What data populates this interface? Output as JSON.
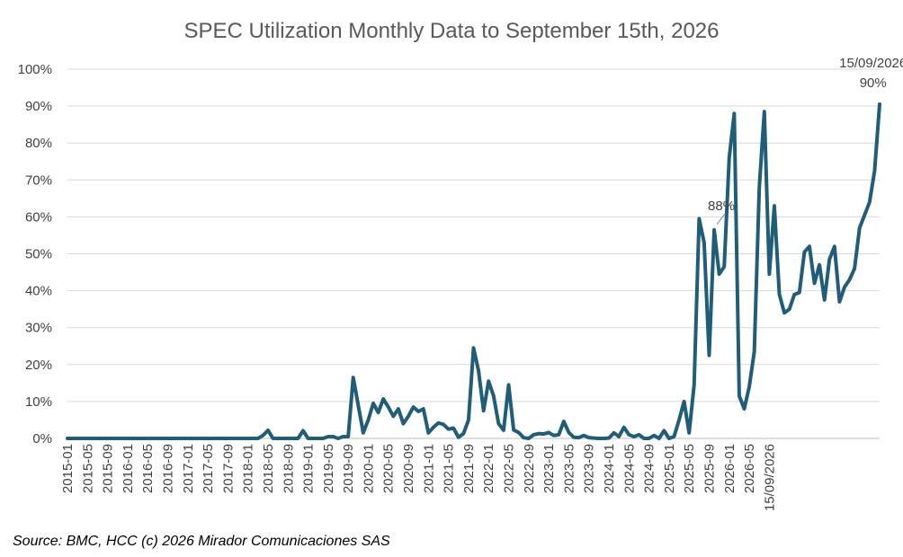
{
  "source_text": "Source: BMC, HCC (c) 2026 Mirador Comunicaciones SAS",
  "chart_data": {
    "type": "line",
    "title": "SPEC Utilization Monthly Data to September 15th, 2026",
    "xlabel": "",
    "ylabel": "",
    "ylim": [
      0,
      100
    ],
    "y_ticks": [
      "0%",
      "10%",
      "20%",
      "30%",
      "40%",
      "50%",
      "60%",
      "70%",
      "80%",
      "90%",
      "100%"
    ],
    "x_tick_labels": [
      "2015-01",
      "2015-05",
      "2015-09",
      "2016-01",
      "2016-05",
      "2016-09",
      "2017-01",
      "2017-05",
      "2017-09",
      "2018-01",
      "2018-05",
      "2018-09",
      "2019-01",
      "2019-05",
      "2019-09",
      "2020-01",
      "2020-05",
      "2020-09",
      "2021-01",
      "2021-05",
      "2021-09",
      "2022-01",
      "2022-05",
      "2022-09",
      "2023-01",
      "2023-05",
      "2023-09",
      "2024-01",
      "2024-05",
      "2024-09",
      "2025-01",
      "2025-05",
      "2025-09",
      "2026-01",
      "2026-05",
      "15/09/2026"
    ],
    "grid": true,
    "line_color": "#1f5d79",
    "series": [
      {
        "values": [
          0,
          0,
          0,
          0,
          0,
          0,
          0,
          0,
          0,
          0,
          0,
          0,
          0,
          0,
          0,
          0,
          0,
          0,
          0,
          0,
          0,
          0,
          0,
          0,
          0,
          0,
          0,
          0,
          0,
          0,
          0,
          0,
          0,
          0,
          0,
          0,
          0,
          0,
          0,
          0.8,
          2.2,
          0,
          0,
          0,
          0,
          0,
          0,
          2.1,
          0,
          0,
          0,
          0,
          0.5,
          0.5,
          0,
          0.5,
          0.5,
          16.5,
          9,
          1.5,
          5,
          9.5,
          7,
          10.7,
          8.5,
          6,
          8,
          4,
          6,
          8.5,
          7.3,
          8,
          1.5,
          3,
          4.2,
          3.8,
          2.5,
          2.8,
          0.3,
          1.3,
          5,
          24.5,
          18.3,
          7.5,
          15.5,
          11.5,
          4,
          2.2,
          14.5,
          2.3,
          1.6,
          0.2,
          0,
          1,
          1.3,
          1.2,
          1.6,
          0.8,
          1,
          4.6,
          1.6,
          0.3,
          0.2,
          0.8,
          0.2,
          0.1,
          0,
          0,
          0.1,
          1.5,
          0.5,
          3,
          1,
          0.5,
          1,
          0,
          0,
          0.8,
          0,
          2.1,
          0,
          0.5,
          5,
          10,
          1.5,
          14.5,
          59.5,
          53,
          22.5,
          56.5,
          44.5,
          46.5,
          76,
          88,
          11.5,
          8,
          14,
          23.5,
          68,
          88.5,
          44.5,
          63,
          39,
          34,
          35,
          39,
          39.5,
          50.5,
          52,
          42,
          47,
          37.5,
          48.5,
          52,
          37,
          41,
          43,
          46,
          57,
          60.5,
          64,
          72.5,
          90.5
        ]
      }
    ],
    "annotations": [
      {
        "text": "88%",
        "x_index": 129
      },
      {
        "text": "15/09/2026",
        "x_index": 165
      },
      {
        "text": "90%",
        "x_index": 165
      }
    ]
  }
}
